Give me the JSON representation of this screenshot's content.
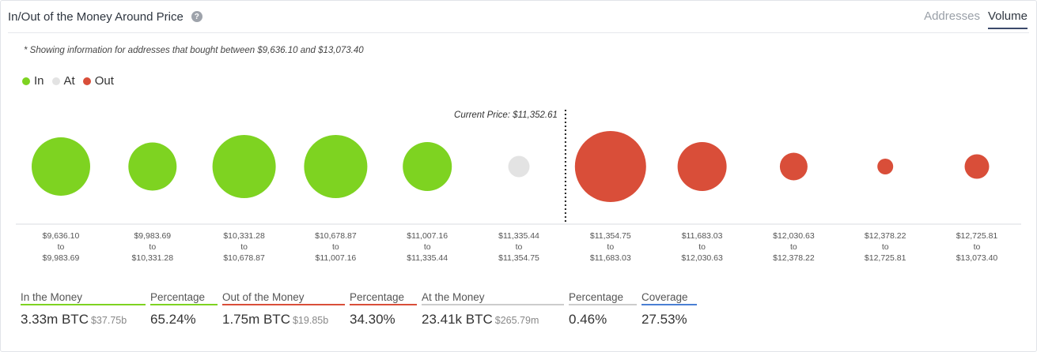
{
  "header": {
    "title": "In/Out of the Money Around Price",
    "tabs": [
      "Addresses",
      "Volume"
    ],
    "active_tab": "Volume"
  },
  "note": "* Showing information for addresses that bought between $9,636.10 and $13,073.40",
  "legend": [
    {
      "label": "In",
      "color": "#7ed321"
    },
    {
      "label": "At",
      "color": "#e3e3e3"
    },
    {
      "label": "Out",
      "color": "#d94e39"
    }
  ],
  "colors": {
    "in": "#7ed321",
    "at": "#e3e3e3",
    "out": "#d94e39",
    "coverage": "#4a7fd4"
  },
  "chart_data": {
    "type": "bubble",
    "current_price_label": "Current Price: $11,352.61",
    "size_max": 45,
    "bubbles": [
      {
        "from": "$9,636.10",
        "to": "$9,983.69",
        "status": "in",
        "size": 37
      },
      {
        "from": "$9,983.69",
        "to": "$10,331.28",
        "status": "in",
        "size": 30.5
      },
      {
        "from": "$10,331.28",
        "to": "$10,678.87",
        "status": "in",
        "size": 40
      },
      {
        "from": "$10,678.87",
        "to": "$11,007.16",
        "status": "in",
        "size": 40
      },
      {
        "from": "$11,007.16",
        "to": "$11,335.44",
        "status": "in",
        "size": 31
      },
      {
        "from": "$11,335.44",
        "to": "$11,354.75",
        "status": "at",
        "size": 13.5
      },
      {
        "from": "$11,354.75",
        "to": "$11,683.03",
        "status": "out",
        "size": 45
      },
      {
        "from": "$11,683.03",
        "to": "$12,030.63",
        "status": "out",
        "size": 31
      },
      {
        "from": "$12,030.63",
        "to": "$12,378.22",
        "status": "out",
        "size": 17.5
      },
      {
        "from": "$12,378.22",
        "to": "$12,725.81",
        "status": "out",
        "size": 10
      },
      {
        "from": "$12,725.81",
        "to": "$13,073.40",
        "status": "out",
        "size": 15.5
      }
    ],
    "range_connector": "to"
  },
  "stats": [
    {
      "label": "In the Money",
      "value": "3.33m BTC",
      "sub": "$37.75b",
      "underline": "#7ed321"
    },
    {
      "label": "Percentage",
      "value": "65.24%",
      "sub": "",
      "underline": "#7ed321"
    },
    {
      "label": "Out of the Money",
      "value": "1.75m BTC",
      "sub": "$19.85b",
      "underline": "#d94e39"
    },
    {
      "label": "Percentage",
      "value": "34.30%",
      "sub": "",
      "underline": "#d94e39"
    },
    {
      "label": "At the Money",
      "value": "23.41k BTC",
      "sub": "$265.79m",
      "underline": "#cccccc"
    },
    {
      "label": "Percentage",
      "value": "0.46%",
      "sub": "",
      "underline": "#cccccc"
    },
    {
      "label": "Coverage",
      "value": "27.53%",
      "sub": "",
      "underline": "#4a7fd4"
    }
  ]
}
